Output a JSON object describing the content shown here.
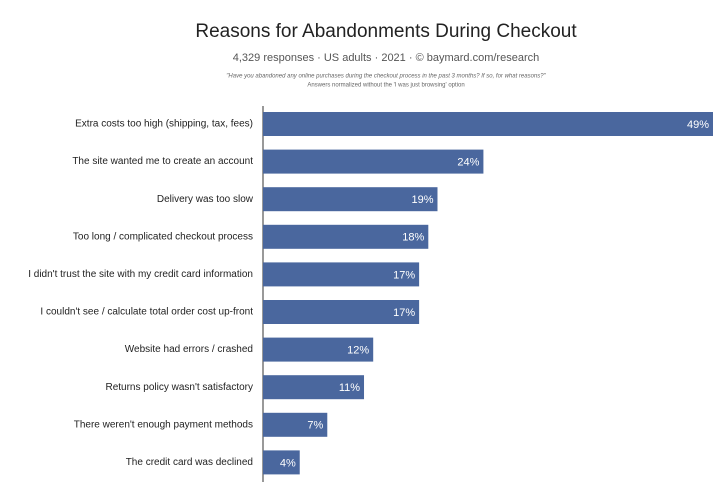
{
  "chart_data": {
    "type": "bar",
    "orientation": "horizontal",
    "title": "Reasons for Abandonments During Checkout",
    "subtitle": "4,329 responses  ·  US adults  ·  2021  ·  © baymard.com/research",
    "notes": [
      "\"Have you abandoned any online purchases during the checkout process in the past 3 months? If so, for what reasons?\"",
      "Answers normalized without the 'I was just browsing' option"
    ],
    "categories": [
      "Extra costs too high (shipping, tax, fees)",
      "The site wanted me to create an account",
      "Delivery was too slow",
      "Too long / complicated checkout process",
      "I didn't trust the site with my credit card information",
      "I couldn't see / calculate total order cost up-front",
      "Website had errors / crashed",
      "Returns policy wasn't satisfactory",
      "There weren't enough payment methods",
      "The credit card was declined"
    ],
    "values": [
      49,
      24,
      19,
      18,
      17,
      17,
      12,
      11,
      7,
      4
    ],
    "value_labels": [
      "49%",
      "24%",
      "19%",
      "18%",
      "17%",
      "17%",
      "12%",
      "11%",
      "7%",
      "4%"
    ],
    "color": "#4a679e"
  }
}
